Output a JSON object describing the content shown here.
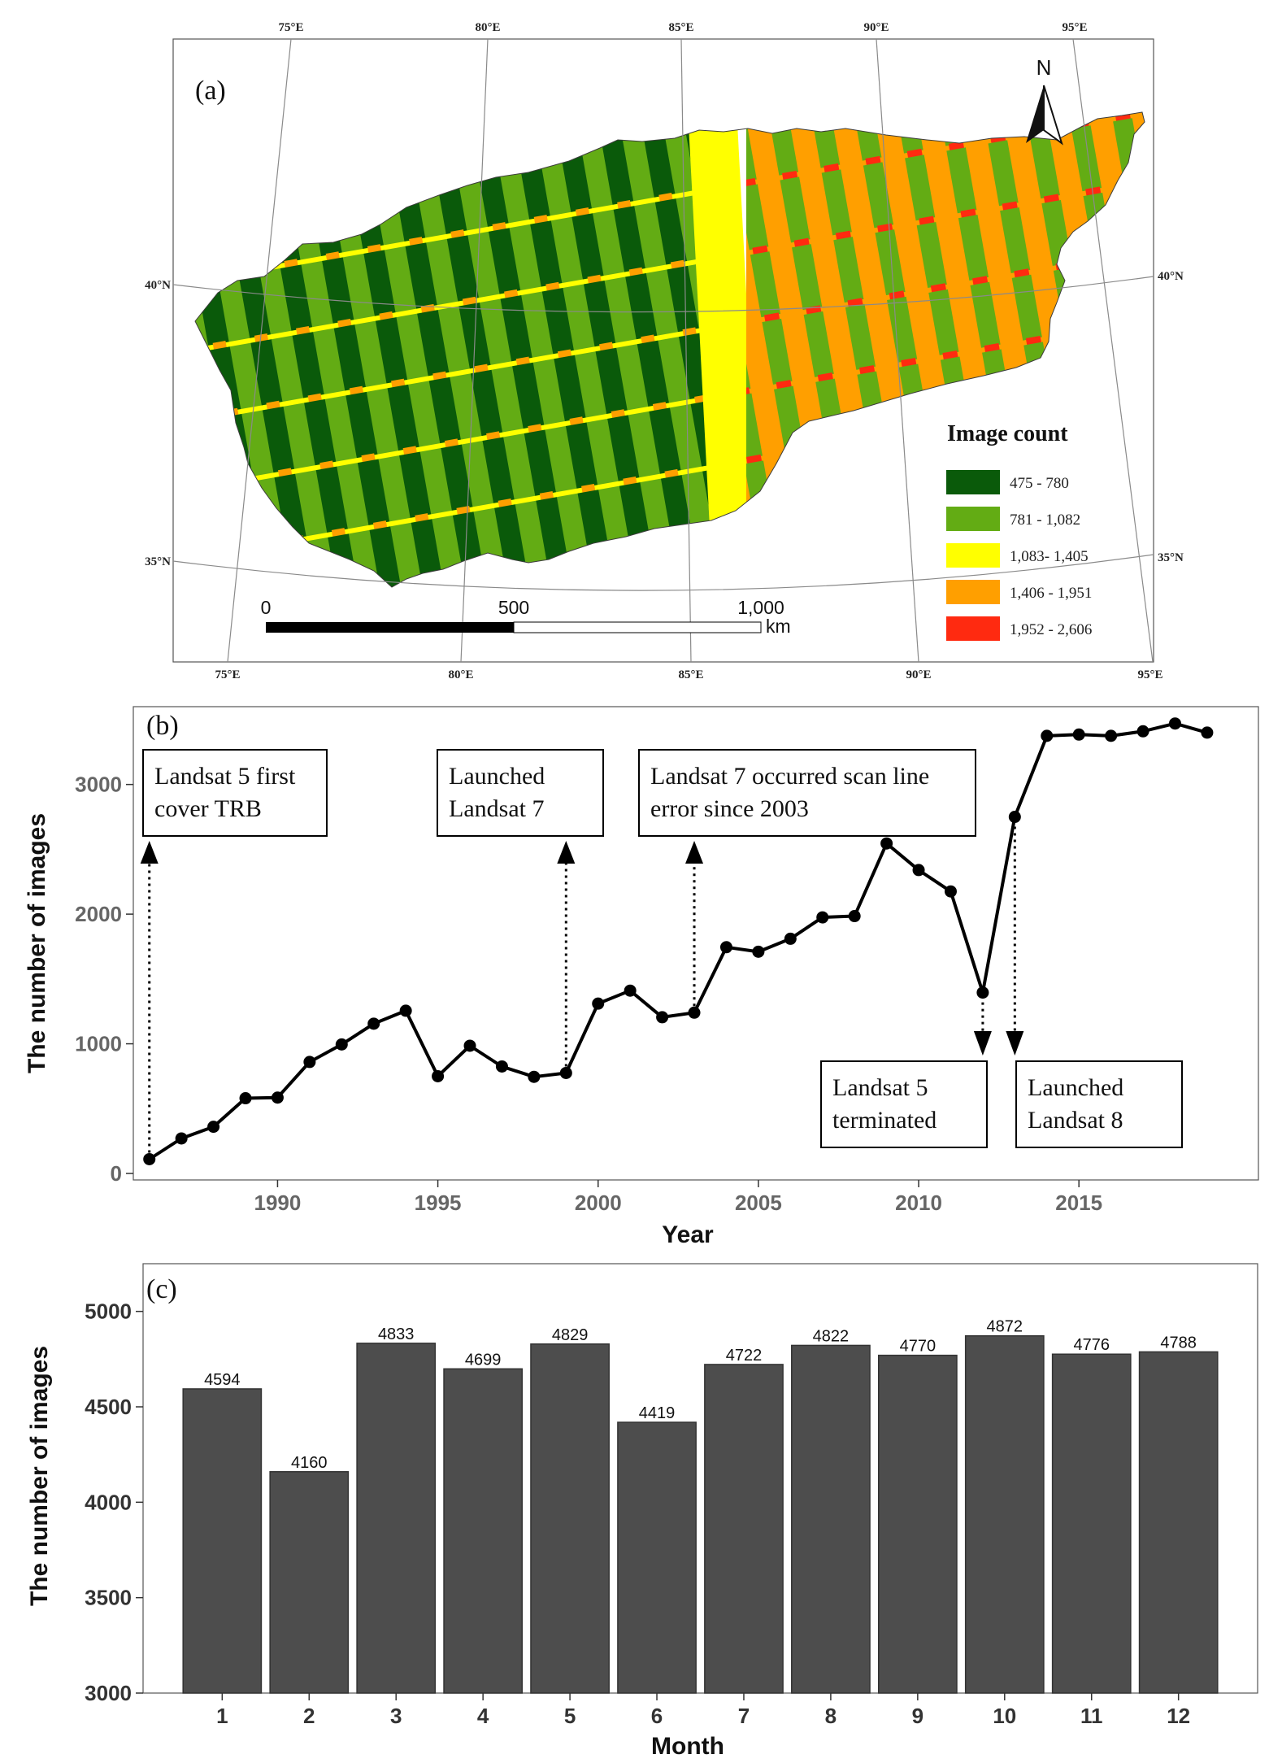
{
  "colors": {
    "class1": "#0a5a0a",
    "class2": "#63ac14",
    "class3": "#ffff00",
    "class4": "#ff9f00",
    "class5": "#ff2a10",
    "bar": "#4d4d4d",
    "line": "#000000"
  },
  "panel_a": {
    "label": "(a)",
    "north_label": "N",
    "top_lon_labels": [
      "75°E",
      "80°E",
      "85°E",
      "90°E",
      "95°E"
    ],
    "bottom_lon_labels": [
      "75°E",
      "80°E",
      "85°E",
      "90°E",
      "95°E"
    ],
    "lat_labels_left": [
      "40°N",
      "35°N"
    ],
    "lat_labels_right": [
      "40°N",
      "35°N"
    ],
    "scale": {
      "ticks": [
        "0",
        "500",
        "1,000"
      ],
      "unit": "km"
    },
    "legend": {
      "title": "Image count",
      "items": [
        "475 - 780",
        "781 - 1,082",
        "1,083- 1,405",
        "1,406 - 1,951",
        "1,952 - 2,606"
      ]
    }
  },
  "chart_data": [
    {
      "type": "line",
      "panel_label": "(b)",
      "xlabel": "Year",
      "ylabel": "The number of images",
      "xlim": [
        1985.5,
        2020.6
      ],
      "ylim": [
        -50,
        3600
      ],
      "x_ticks": [
        1990,
        1995,
        2000,
        2005,
        2010,
        2015
      ],
      "y_ticks": [
        0,
        1000,
        2000,
        3000
      ],
      "x": [
        1986,
        1987,
        1988,
        1989,
        1990,
        1991,
        1992,
        1993,
        1994,
        1995,
        1996,
        1997,
        1998,
        1999,
        2000,
        2001,
        2002,
        2003,
        2004,
        2005,
        2006,
        2007,
        2008,
        2009,
        2010,
        2011,
        2012,
        2013,
        2014,
        2015,
        2016,
        2017,
        2018,
        2019
      ],
      "values": [
        110,
        270,
        360,
        580,
        585,
        860,
        995,
        1155,
        1255,
        750,
        985,
        825,
        745,
        775,
        1310,
        1410,
        1205,
        1240,
        1745,
        1710,
        1810,
        1975,
        1985,
        2545,
        2340,
        2175,
        1395,
        2750,
        3375,
        3385,
        3375,
        3410,
        3470,
        3400
      ],
      "annotations": [
        {
          "text_lines": [
            "Landsat 5 first",
            "cover TRB"
          ],
          "year": 1986,
          "direction": "up"
        },
        {
          "text_lines": [
            "Launched",
            "Landsat 7"
          ],
          "year": 1999,
          "direction": "up"
        },
        {
          "text_lines": [
            "Landsat 7 occurred scan line",
            "error since 2003"
          ],
          "year": 2003,
          "direction": "up"
        },
        {
          "text_lines": [
            "Landsat 5",
            "terminated"
          ],
          "year": 2012,
          "direction": "down"
        },
        {
          "text_lines": [
            "Launched",
            "Landsat 8"
          ],
          "year": 2013,
          "direction": "down"
        }
      ]
    },
    {
      "type": "bar",
      "panel_label": "(c)",
      "xlabel": "Month",
      "ylabel": "The number of images",
      "ylim": [
        3000,
        5250
      ],
      "y_ticks": [
        3000,
        3500,
        4000,
        4500,
        5000
      ],
      "categories": [
        "1",
        "2",
        "3",
        "4",
        "5",
        "6",
        "7",
        "8",
        "9",
        "10",
        "11",
        "12"
      ],
      "values": [
        4594,
        4160,
        4833,
        4699,
        4829,
        4419,
        4722,
        4822,
        4770,
        4872,
        4776,
        4788
      ]
    }
  ]
}
